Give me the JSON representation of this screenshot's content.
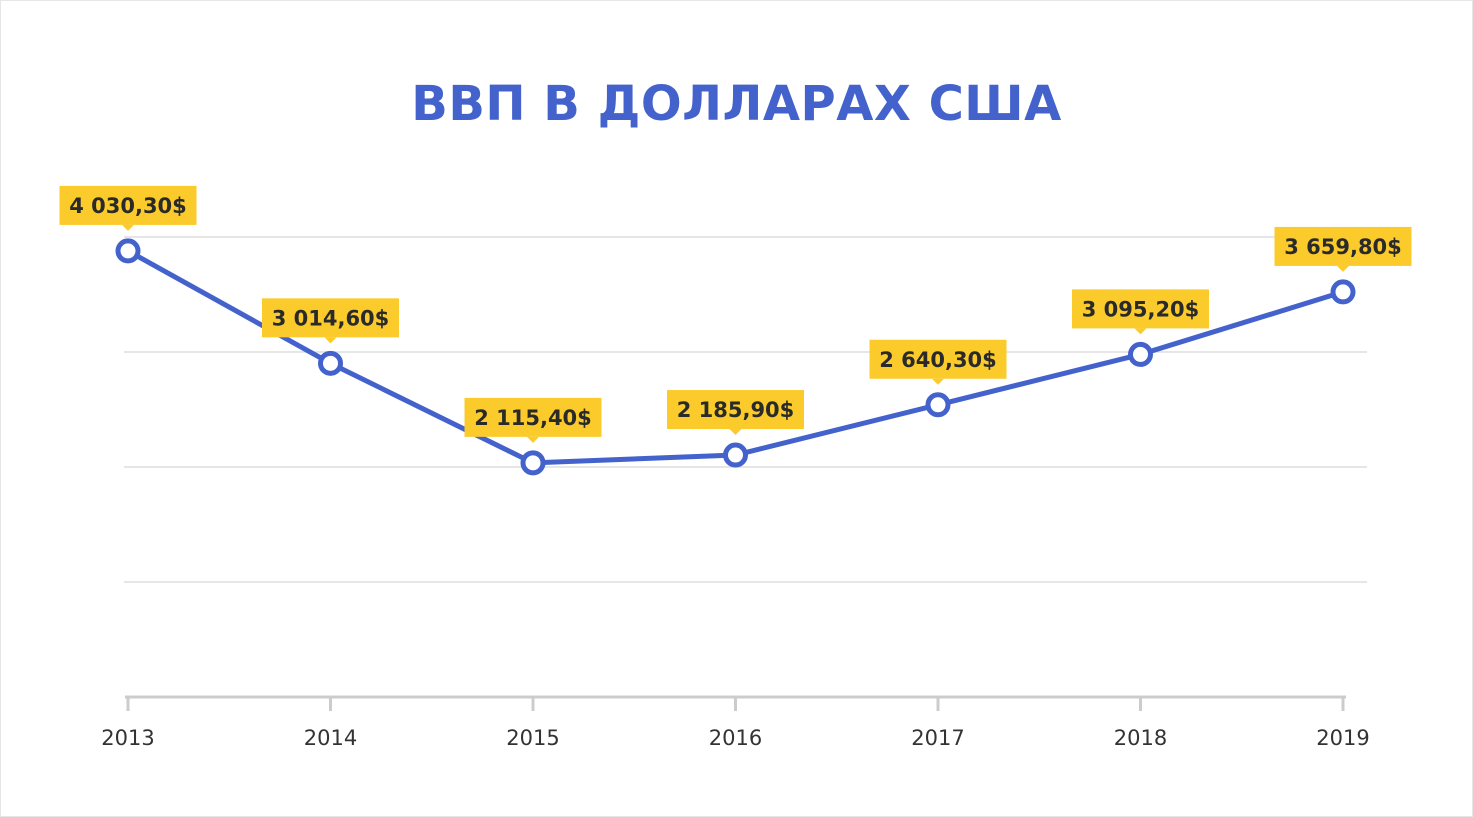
{
  "chart_data": {
    "type": "line",
    "title": "ВВП В ДОЛЛАРАХ США",
    "xlabel": "",
    "ylabel": "",
    "categories": [
      "2013",
      "2014",
      "2015",
      "2016",
      "2017",
      "2018",
      "2019"
    ],
    "values": [
      4030.3,
      3014.6,
      2115.4,
      2185.9,
      2640.3,
      3095.2,
      3659.8
    ],
    "data_labels": [
      "4 030,30$",
      "3 014,60$",
      "2 115,40$",
      "2 185,90$",
      "2 640,30$",
      "3 095,20$",
      "3 659,80$"
    ],
    "ylim": [
      0,
      4156
    ],
    "y_ticks_shown": false,
    "grid": true,
    "legend": "none",
    "colors": {
      "line": "#4462cc",
      "label_bg": "#fbcb2c",
      "grid": "#dddddd",
      "title": "#4462cc"
    }
  }
}
